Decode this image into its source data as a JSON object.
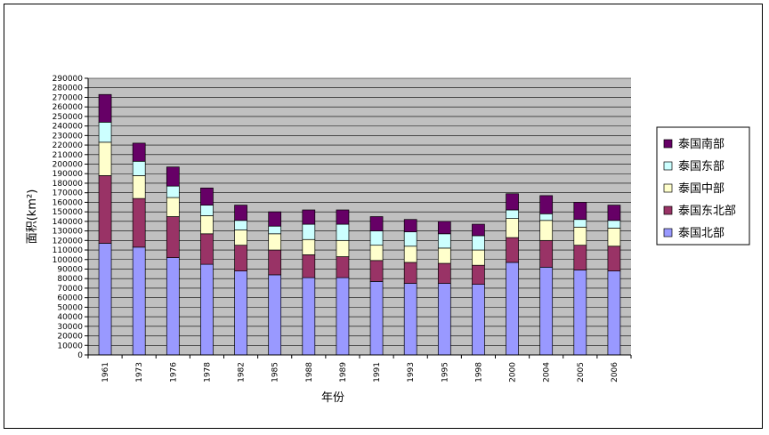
{
  "chart_data": {
    "type": "bar",
    "stacked": true,
    "title": "",
    "xlabel": "年份",
    "ylabel": "面积(km²)",
    "ylim": [
      0,
      290000
    ],
    "ytick_step": 10000,
    "grid": true,
    "legend_position": "right",
    "categories": [
      "1961",
      "1973",
      "1976",
      "1978",
      "1982",
      "1985",
      "1988",
      "1989",
      "1991",
      "1993",
      "1995",
      "1998",
      "2000",
      "2004",
      "2005",
      "2006"
    ],
    "series": [
      {
        "name": "泰国北部",
        "color": "#9999FF",
        "values": [
          117000,
          113000,
          102000,
          95000,
          88000,
          84000,
          81000,
          81000,
          77000,
          75000,
          75000,
          74000,
          97000,
          92000,
          89000,
          88000
        ]
      },
      {
        "name": "泰国东北部",
        "color": "#993366",
        "values": [
          71000,
          51000,
          43000,
          32000,
          27000,
          26000,
          24000,
          22000,
          22000,
          22000,
          21000,
          20000,
          26000,
          28000,
          26000,
          26000
        ]
      },
      {
        "name": "泰国中部",
        "color": "#FFFFCC",
        "values": [
          35000,
          24000,
          20000,
          19000,
          16000,
          17000,
          16000,
          17000,
          16000,
          17000,
          16000,
          16000,
          20000,
          21000,
          19000,
          19000
        ]
      },
      {
        "name": "泰国东部",
        "color": "#CCFFFF",
        "values": [
          21000,
          15000,
          12000,
          11000,
          10000,
          8000,
          16000,
          17000,
          15000,
          15000,
          15000,
          15000,
          9000,
          7000,
          8000,
          8000
        ]
      },
      {
        "name": "泰国南部",
        "color": "#660066",
        "values": [
          29000,
          19000,
          20000,
          18000,
          16000,
          15000,
          15000,
          15000,
          15000,
          13000,
          13000,
          12000,
          17000,
          19000,
          18000,
          16000
        ]
      }
    ],
    "legend_order": [
      "泰国南部",
      "泰国东部",
      "泰国中部",
      "泰国东北部",
      "泰国北部"
    ]
  },
  "colors": {
    "plot_background": "#C0C0C0",
    "gridline": "#000000"
  }
}
